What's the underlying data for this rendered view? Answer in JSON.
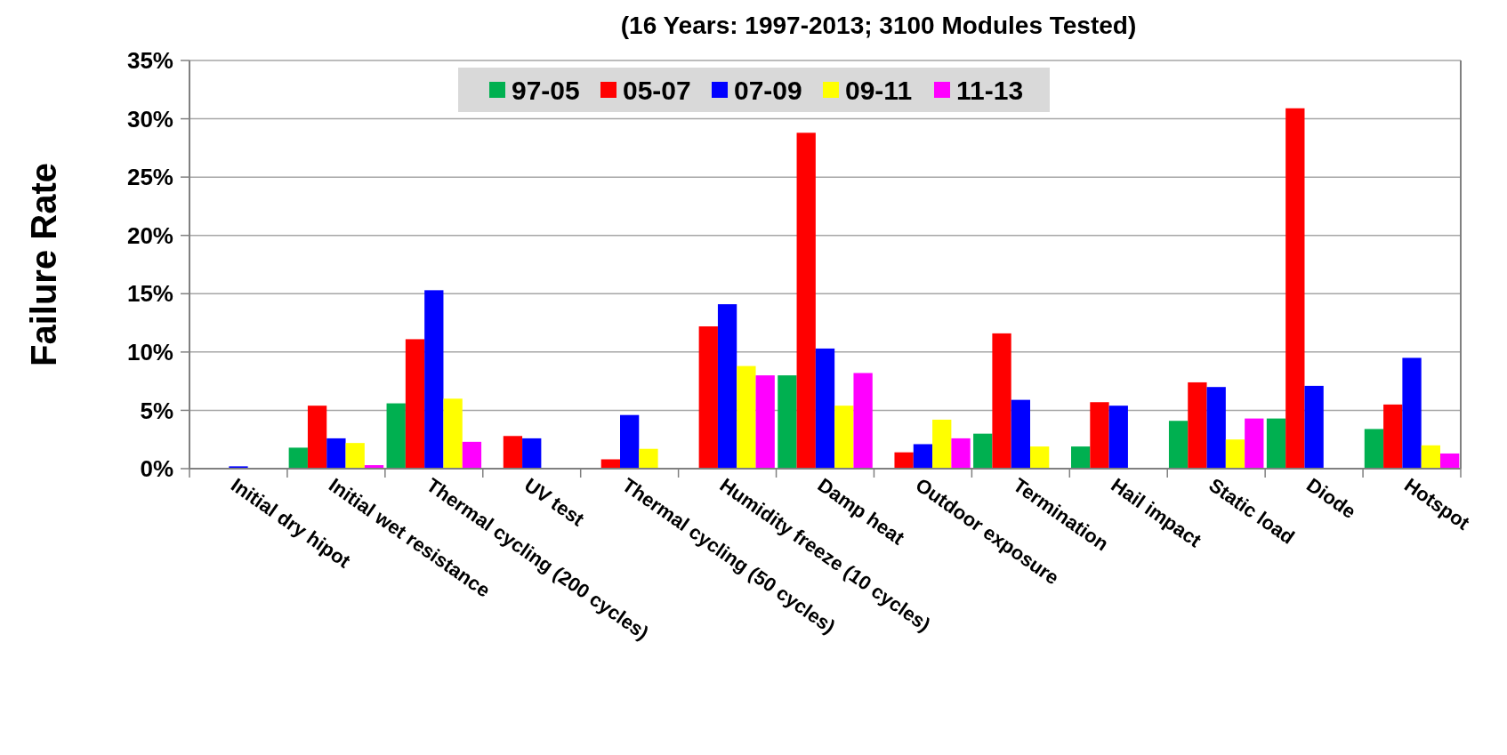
{
  "chart_data": {
    "type": "bar",
    "title": "(16 Years: 1997-2013; 3100 Modules Tested)",
    "ylabel": "Failure Rate",
    "categories": [
      "Initial dry hipot",
      "Initial wet resistance",
      "Thermal cycling (200 cycles)",
      "UV test",
      "Thermal cycling (50 cycles)",
      "Humidity freeze (10 cycles)",
      "Damp heat",
      "Outdoor exposure",
      "Termination",
      "Hail impact",
      "Static load",
      "Diode",
      "Hotspot"
    ],
    "series": [
      {
        "name": "97-05",
        "color": "#00b050",
        "values": [
          null,
          1.8,
          5.6,
          null,
          null,
          null,
          8.0,
          null,
          3.0,
          1.9,
          4.1,
          4.3,
          3.4
        ]
      },
      {
        "name": "05-07",
        "color": "#ff0000",
        "values": [
          null,
          5.4,
          11.1,
          2.8,
          0.8,
          12.2,
          28.8,
          1.4,
          11.6,
          5.7,
          7.4,
          30.9,
          5.5
        ]
      },
      {
        "name": "07-09",
        "color": "#0000ff",
        "values": [
          0.2,
          2.6,
          15.3,
          2.6,
          4.6,
          14.1,
          10.3,
          2.1,
          5.9,
          5.4,
          7.0,
          7.1,
          9.5
        ]
      },
      {
        "name": "09-11",
        "color": "#ffff00",
        "values": [
          null,
          2.2,
          6.0,
          null,
          1.7,
          8.8,
          5.4,
          4.2,
          1.9,
          null,
          2.5,
          null,
          2.0
        ]
      },
      {
        "name": "11-13",
        "color": "#ff00ff",
        "values": [
          null,
          0.3,
          2.3,
          null,
          null,
          8.0,
          8.2,
          2.6,
          null,
          null,
          4.3,
          null,
          1.3
        ]
      }
    ],
    "ylim": [
      0,
      35
    ],
    "yticks": [
      {
        "value": 0,
        "label": "0%"
      },
      {
        "value": 5,
        "label": "5%"
      },
      {
        "value": 10,
        "label": "10%"
      },
      {
        "value": 15,
        "label": "15%"
      },
      {
        "value": 20,
        "label": "20%"
      },
      {
        "value": 25,
        "label": "25%"
      },
      {
        "value": 30,
        "label": "30%"
      },
      {
        "value": 35,
        "label": "35%"
      }
    ],
    "grid": "y",
    "legend": "top"
  }
}
